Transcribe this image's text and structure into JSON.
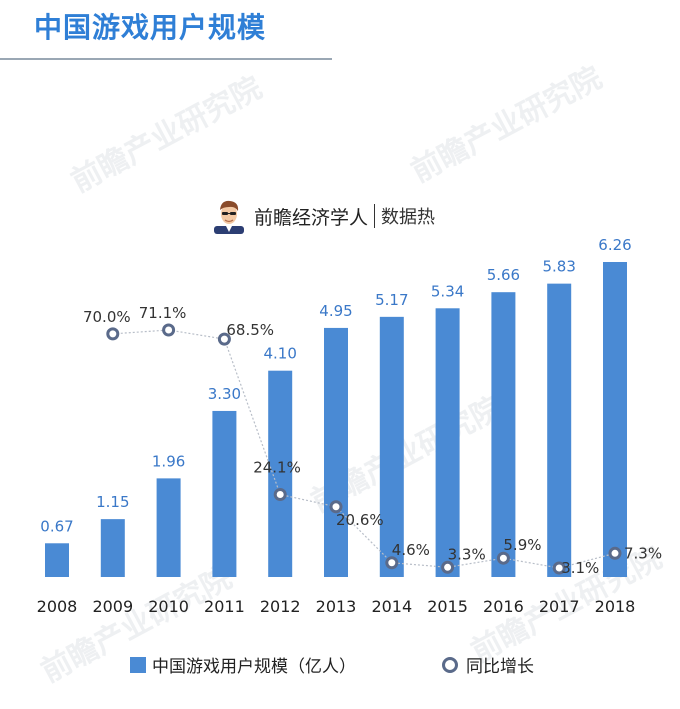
{
  "page": {
    "title": "中国游戏用户规模",
    "brand_name": "前瞻经济学人",
    "brand_sub": "数据热",
    "watermark": "前瞻产业研究院"
  },
  "chart_data": {
    "type": "bar",
    "categories": [
      "2008",
      "2009",
      "2010",
      "2011",
      "2012",
      "2013",
      "2014",
      "2015",
      "2016",
      "2017",
      "2018"
    ],
    "series": [
      {
        "name": "中国游戏用户规模（亿人）",
        "type": "bar",
        "values": [
          0.67,
          1.15,
          1.96,
          3.3,
          4.1,
          4.95,
          5.17,
          5.34,
          5.66,
          5.83,
          6.26
        ],
        "labels": [
          "0.67",
          "1.15",
          "1.96",
          "3.30",
          "4.10",
          "4.95",
          "5.17",
          "5.34",
          "5.66",
          "5.83",
          "6.26"
        ]
      },
      {
        "name": "同比增长",
        "type": "line",
        "values": [
          null,
          70.0,
          71.1,
          68.5,
          24.1,
          20.6,
          4.6,
          3.3,
          5.9,
          3.1,
          7.3
        ],
        "labels": [
          "",
          "70.0%",
          "71.1%",
          "68.5%",
          "24.1%",
          "20.6%",
          "4.6%",
          "3.3%",
          "5.9%",
          "3.1%",
          "7.3%"
        ]
      }
    ],
    "colors": {
      "bar": "#4a8ad4",
      "bar_label": "#3a78c8",
      "line": "#b8bec8",
      "marker": "#5a6a8a"
    },
    "legend_position": "bottom"
  }
}
